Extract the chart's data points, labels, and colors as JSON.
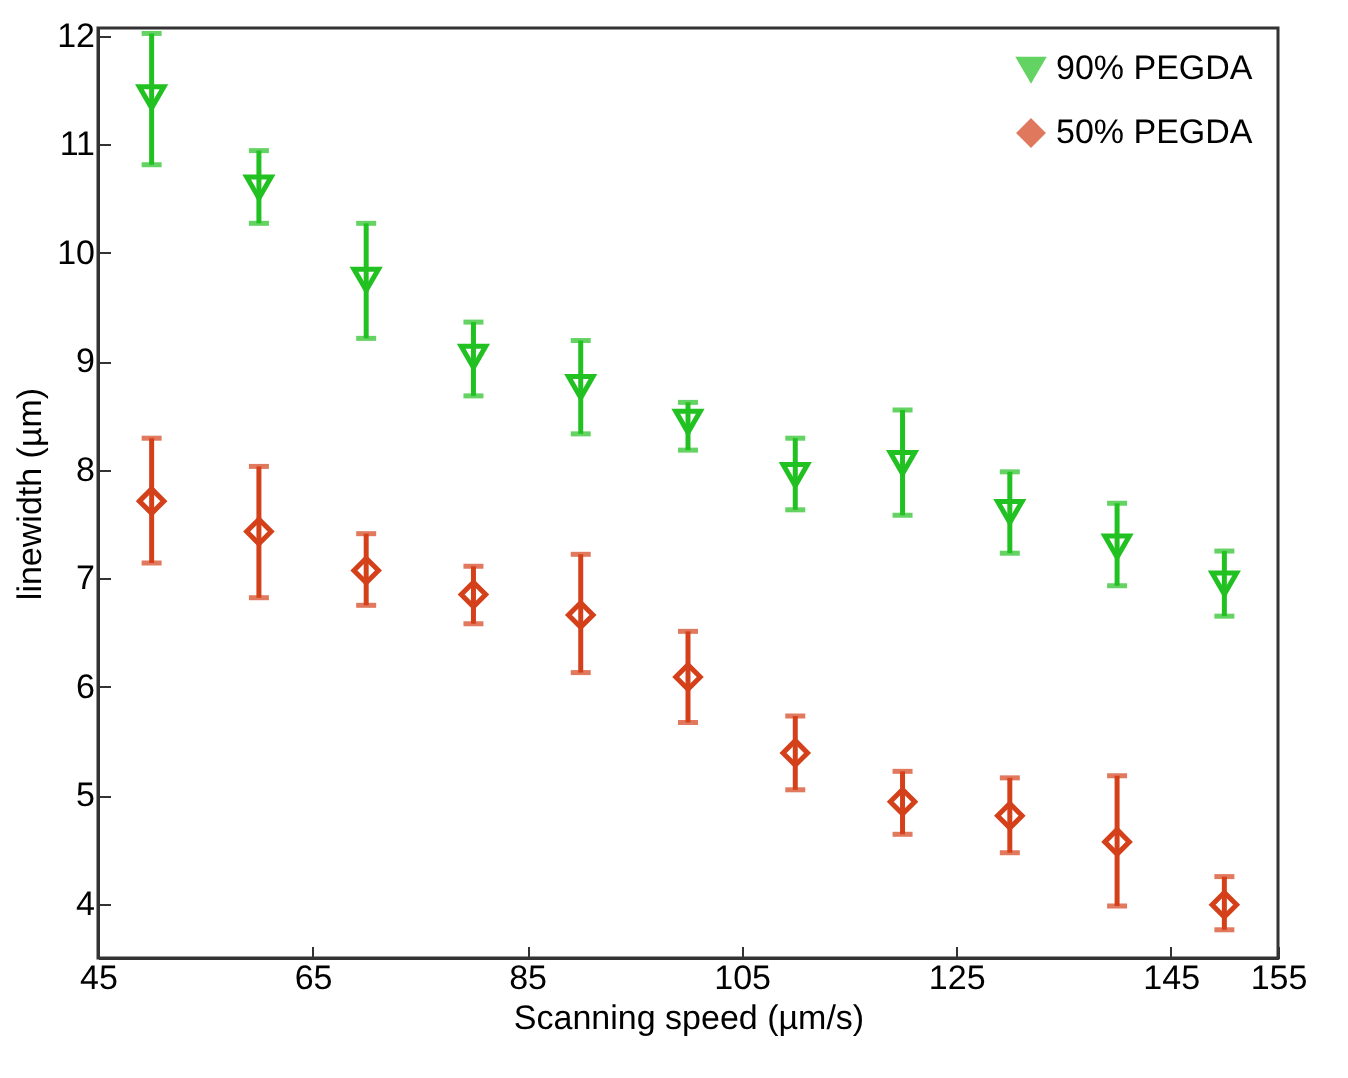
{
  "chart_data": {
    "type": "scatter",
    "xlabel": "Scanning speed (µm/s)",
    "ylabel": "linewidth (µm)",
    "x": [
      50,
      60,
      70,
      80,
      90,
      100,
      110,
      120,
      130,
      140,
      150
    ],
    "xlim": [
      45,
      155
    ],
    "xticks": [
      45,
      65,
      85,
      105,
      125,
      145,
      155
    ],
    "ylim": [
      3.5,
      12.07
    ],
    "yticks": [
      4,
      5,
      6,
      7,
      8,
      9,
      10,
      11,
      12
    ],
    "grid": false,
    "legend": "top right",
    "series": [
      {
        "name": "90% PEGDA",
        "color": "#22c122",
        "marker": "triangle",
        "values": [
          11.43,
          10.6,
          9.75,
          9.04,
          8.76,
          8.44,
          7.95,
          8.06,
          7.61,
          7.29,
          6.95
        ],
        "errors": [
          [
            10.81,
            12.02
          ],
          [
            10.27,
            10.94
          ],
          [
            9.21,
            10.27
          ],
          [
            8.68,
            9.36
          ],
          [
            8.33,
            9.19
          ],
          [
            8.18,
            8.62
          ],
          [
            7.63,
            8.29
          ],
          [
            7.58,
            8.55
          ],
          [
            7.23,
            7.98
          ],
          [
            6.93,
            7.69
          ],
          [
            6.65,
            7.25
          ]
        ]
      },
      {
        "name": "50% PEGDA",
        "color": "#d4401a",
        "marker": "diamond",
        "values": [
          7.71,
          7.43,
          7.07,
          6.85,
          6.66,
          6.09,
          5.39,
          4.94,
          4.81,
          4.57,
          3.99
        ],
        "errors": [
          [
            7.14,
            8.29
          ],
          [
            6.82,
            8.03
          ],
          [
            6.75,
            7.41
          ],
          [
            6.58,
            7.11
          ],
          [
            6.13,
            7.22
          ],
          [
            5.67,
            6.51
          ],
          [
            5.05,
            5.73
          ],
          [
            4.64,
            5.22
          ],
          [
            4.47,
            5.16
          ],
          [
            3.98,
            5.18
          ],
          [
            3.76,
            4.25
          ]
        ]
      }
    ]
  }
}
